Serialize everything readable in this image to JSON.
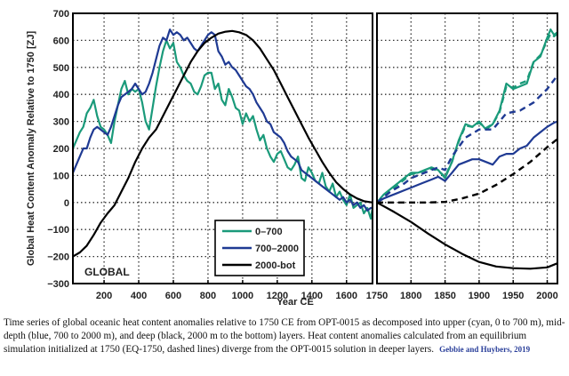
{
  "chart_data": [
    {
      "type": "line",
      "panel": "left",
      "annotation": "GLOBAL",
      "ylabel": "Global Heat Content Anomaly Relative to 1750 [ZJ]",
      "xlabel": "Year CE",
      "xlim": [
        20,
        1750
      ],
      "ylim": [
        -300,
        700
      ],
      "xticks": [
        200,
        400,
        600,
        800,
        1000,
        1200,
        1400,
        1600,
        1750
      ],
      "yticks": [
        -300,
        -200,
        -100,
        0,
        100,
        200,
        300,
        400,
        500,
        600,
        700
      ],
      "grid": true,
      "legend_position": "bottom-right",
      "series": [
        {
          "name": "0–700",
          "color": "#1a9a7a",
          "style": "solid",
          "x": [
            20,
            40,
            60,
            80,
            100,
            120,
            140,
            160,
            180,
            200,
            220,
            240,
            260,
            280,
            300,
            320,
            340,
            360,
            380,
            400,
            420,
            440,
            460,
            480,
            500,
            520,
            540,
            560,
            580,
            600,
            620,
            640,
            660,
            680,
            700,
            720,
            740,
            760,
            780,
            800,
            820,
            840,
            860,
            880,
            900,
            920,
            940,
            960,
            980,
            1000,
            1020,
            1040,
            1060,
            1080,
            1100,
            1120,
            1140,
            1160,
            1180,
            1200,
            1220,
            1240,
            1260,
            1280,
            1300,
            1320,
            1340,
            1360,
            1380,
            1400,
            1420,
            1440,
            1460,
            1480,
            1500,
            1520,
            1540,
            1560,
            1580,
            1600,
            1620,
            1640,
            1660,
            1680,
            1700,
            1720,
            1740,
            1750
          ],
          "values": [
            200,
            230,
            260,
            280,
            330,
            350,
            380,
            320,
            280,
            270,
            250,
            220,
            300,
            360,
            420,
            450,
            400,
            420,
            410,
            420,
            370,
            300,
            270,
            350,
            430,
            500,
            560,
            600,
            570,
            590,
            520,
            500,
            470,
            450,
            440,
            410,
            400,
            430,
            470,
            480,
            480,
            420,
            440,
            380,
            360,
            420,
            390,
            350,
            340,
            290,
            330,
            300,
            320,
            270,
            230,
            250,
            200,
            170,
            150,
            180,
            190,
            160,
            130,
            120,
            140,
            170,
            90,
            80,
            130,
            110,
            80,
            70,
            110,
            60,
            40,
            70,
            20,
            40,
            10,
            -10,
            30,
            -20,
            -10,
            0,
            -40,
            -20,
            -60,
            -20
          ]
        },
        {
          "name": "700–2000",
          "color": "#1f3a93",
          "style": "solid",
          "x": [
            20,
            40,
            60,
            80,
            100,
            120,
            140,
            160,
            180,
            200,
            220,
            240,
            260,
            280,
            300,
            320,
            340,
            360,
            380,
            400,
            420,
            440,
            460,
            480,
            500,
            520,
            540,
            560,
            580,
            600,
            620,
            640,
            660,
            680,
            700,
            720,
            740,
            760,
            780,
            800,
            820,
            840,
            860,
            880,
            900,
            920,
            940,
            960,
            980,
            1000,
            1020,
            1040,
            1060,
            1080,
            1100,
            1120,
            1140,
            1160,
            1180,
            1200,
            1220,
            1240,
            1260,
            1280,
            1300,
            1320,
            1340,
            1360,
            1380,
            1400,
            1420,
            1440,
            1460,
            1480,
            1500,
            1520,
            1540,
            1560,
            1580,
            1600,
            1620,
            1640,
            1660,
            1680,
            1700,
            1720,
            1740,
            1750
          ],
          "values": [
            110,
            140,
            170,
            200,
            200,
            240,
            270,
            280,
            270,
            260,
            250,
            280,
            320,
            360,
            390,
            400,
            410,
            420,
            440,
            420,
            400,
            410,
            440,
            480,
            530,
            580,
            610,
            600,
            640,
            620,
            630,
            620,
            600,
            610,
            590,
            570,
            560,
            580,
            600,
            620,
            630,
            620,
            560,
            540,
            510,
            520,
            500,
            490,
            470,
            450,
            430,
            420,
            400,
            370,
            350,
            330,
            300,
            290,
            260,
            250,
            240,
            220,
            190,
            170,
            160,
            150,
            120,
            110,
            100,
            90,
            80,
            70,
            60,
            50,
            40,
            30,
            20,
            10,
            20,
            0,
            10,
            -10,
            0,
            -20,
            -10,
            -30,
            -20,
            -20
          ]
        },
        {
          "name": "2000-bot",
          "color": "#000000",
          "style": "solid",
          "x": [
            20,
            60,
            100,
            140,
            180,
            220,
            260,
            300,
            340,
            380,
            420,
            460,
            500,
            540,
            580,
            620,
            660,
            700,
            740,
            780,
            820,
            860,
            900,
            940,
            980,
            1020,
            1060,
            1100,
            1140,
            1180,
            1220,
            1260,
            1300,
            1340,
            1380,
            1420,
            1460,
            1500,
            1540,
            1580,
            1620,
            1660,
            1700,
            1750
          ],
          "values": [
            -200,
            -185,
            -160,
            -120,
            -75,
            -40,
            -10,
            40,
            90,
            150,
            200,
            240,
            270,
            320,
            370,
            420,
            470,
            520,
            560,
            590,
            610,
            625,
            632,
            635,
            630,
            620,
            600,
            570,
            530,
            490,
            440,
            390,
            340,
            290,
            240,
            195,
            150,
            110,
            75,
            50,
            30,
            15,
            5,
            0
          ]
        }
      ]
    },
    {
      "type": "line",
      "panel": "right",
      "xlabel": "Year CE",
      "xlim": [
        1750,
        2015
      ],
      "ylim": [
        -300,
        700
      ],
      "xticks": [
        1750,
        1800,
        1850,
        1900,
        1950,
        2000
      ],
      "grid": true,
      "series": [
        {
          "name": "0–700 (OPT-0015)",
          "color": "#1a9a7a",
          "style": "solid",
          "x": [
            1750,
            1760,
            1770,
            1780,
            1790,
            1800,
            1810,
            1820,
            1830,
            1840,
            1850,
            1860,
            1870,
            1880,
            1890,
            1900,
            1910,
            1920,
            1930,
            1940,
            1950,
            1960,
            1970,
            1980,
            1990,
            2000,
            2005,
            2010,
            2015
          ],
          "values": [
            0,
            30,
            50,
            70,
            90,
            110,
            110,
            120,
            130,
            120,
            90,
            150,
            230,
            290,
            280,
            300,
            270,
            290,
            340,
            440,
            420,
            430,
            440,
            520,
            540,
            610,
            640,
            620,
            630
          ]
        },
        {
          "name": "0–700 (EQ-1750)",
          "color": "#1a9a7a",
          "style": "dashed",
          "x": [
            1750,
            1760,
            1770,
            1780,
            1790,
            1800,
            1810,
            1820,
            1830,
            1840,
            1850,
            1860,
            1870,
            1880,
            1890,
            1900,
            1910,
            1920,
            1930,
            1940,
            1950,
            1960,
            1970,
            1980,
            1990,
            2000,
            2005,
            2010,
            2015
          ],
          "values": [
            0,
            25,
            45,
            65,
            85,
            105,
            110,
            118,
            125,
            118,
            95,
            150,
            225,
            285,
            280,
            295,
            275,
            290,
            335,
            430,
            425,
            440,
            450,
            520,
            545,
            600,
            625,
            615,
            625
          ]
        },
        {
          "name": "700–2000 (OPT-0015)",
          "color": "#1f3a93",
          "style": "solid",
          "x": [
            1750,
            1760,
            1770,
            1780,
            1790,
            1800,
            1810,
            1820,
            1830,
            1840,
            1850,
            1860,
            1870,
            1880,
            1890,
            1900,
            1910,
            1920,
            1930,
            1940,
            1950,
            1960,
            1970,
            1980,
            1990,
            2000,
            2010,
            2015
          ],
          "values": [
            0,
            15,
            25,
            35,
            45,
            55,
            65,
            75,
            85,
            95,
            80,
            110,
            140,
            150,
            160,
            160,
            150,
            140,
            170,
            180,
            180,
            200,
            210,
            240,
            260,
            280,
            295,
            300
          ]
        },
        {
          "name": "700–2000 (EQ-1750)",
          "color": "#1f3a93",
          "style": "dashed",
          "x": [
            1750,
            1770,
            1790,
            1800,
            1820,
            1840,
            1850,
            1860,
            1880,
            1900,
            1920,
            1940,
            1960,
            1980,
            2000,
            2015
          ],
          "values": [
            0,
            40,
            70,
            90,
            110,
            130,
            120,
            170,
            240,
            270,
            270,
            330,
            340,
            370,
            420,
            470
          ]
        },
        {
          "name": "2000-bot (OPT-0015)",
          "color": "#000000",
          "style": "solid",
          "x": [
            1750,
            1775,
            1800,
            1825,
            1850,
            1875,
            1900,
            1925,
            1950,
            1975,
            2000,
            2015
          ],
          "values": [
            0,
            -35,
            -72,
            -115,
            -155,
            -190,
            -220,
            -237,
            -243,
            -245,
            -240,
            -225
          ]
        },
        {
          "name": "2000-bot (EQ-1750)",
          "color": "#000000",
          "style": "dashed",
          "x": [
            1750,
            1775,
            1800,
            1825,
            1850,
            1875,
            1900,
            1925,
            1950,
            1975,
            2000,
            2015
          ],
          "values": [
            0,
            0,
            0,
            0,
            2,
            15,
            33,
            65,
            105,
            150,
            205,
            235
          ]
        }
      ]
    }
  ],
  "legend": [
    {
      "label": "0–700",
      "color": "#1a9a7a"
    },
    {
      "label": "700–2000",
      "color": "#1f3a93"
    },
    {
      "label": "2000-bot",
      "color": "#000000"
    }
  ],
  "caption": {
    "text": "Time series of global oceanic heat content anomalies relative to 1750 CE from OPT-0015 as decomposed into upper (cyan, 0 to 700 m), mid-depth (blue, 700 to 2000 m), and deep (black, 2000 m to the bottom) layers. Heat content anomalies calculated from an equilibrium simulation initialized at 1750 (EQ-1750, dashed lines) diverge from the OPT-0015 solution in deeper layers.",
    "credit": "Gebbie and Huybers, 2019"
  }
}
